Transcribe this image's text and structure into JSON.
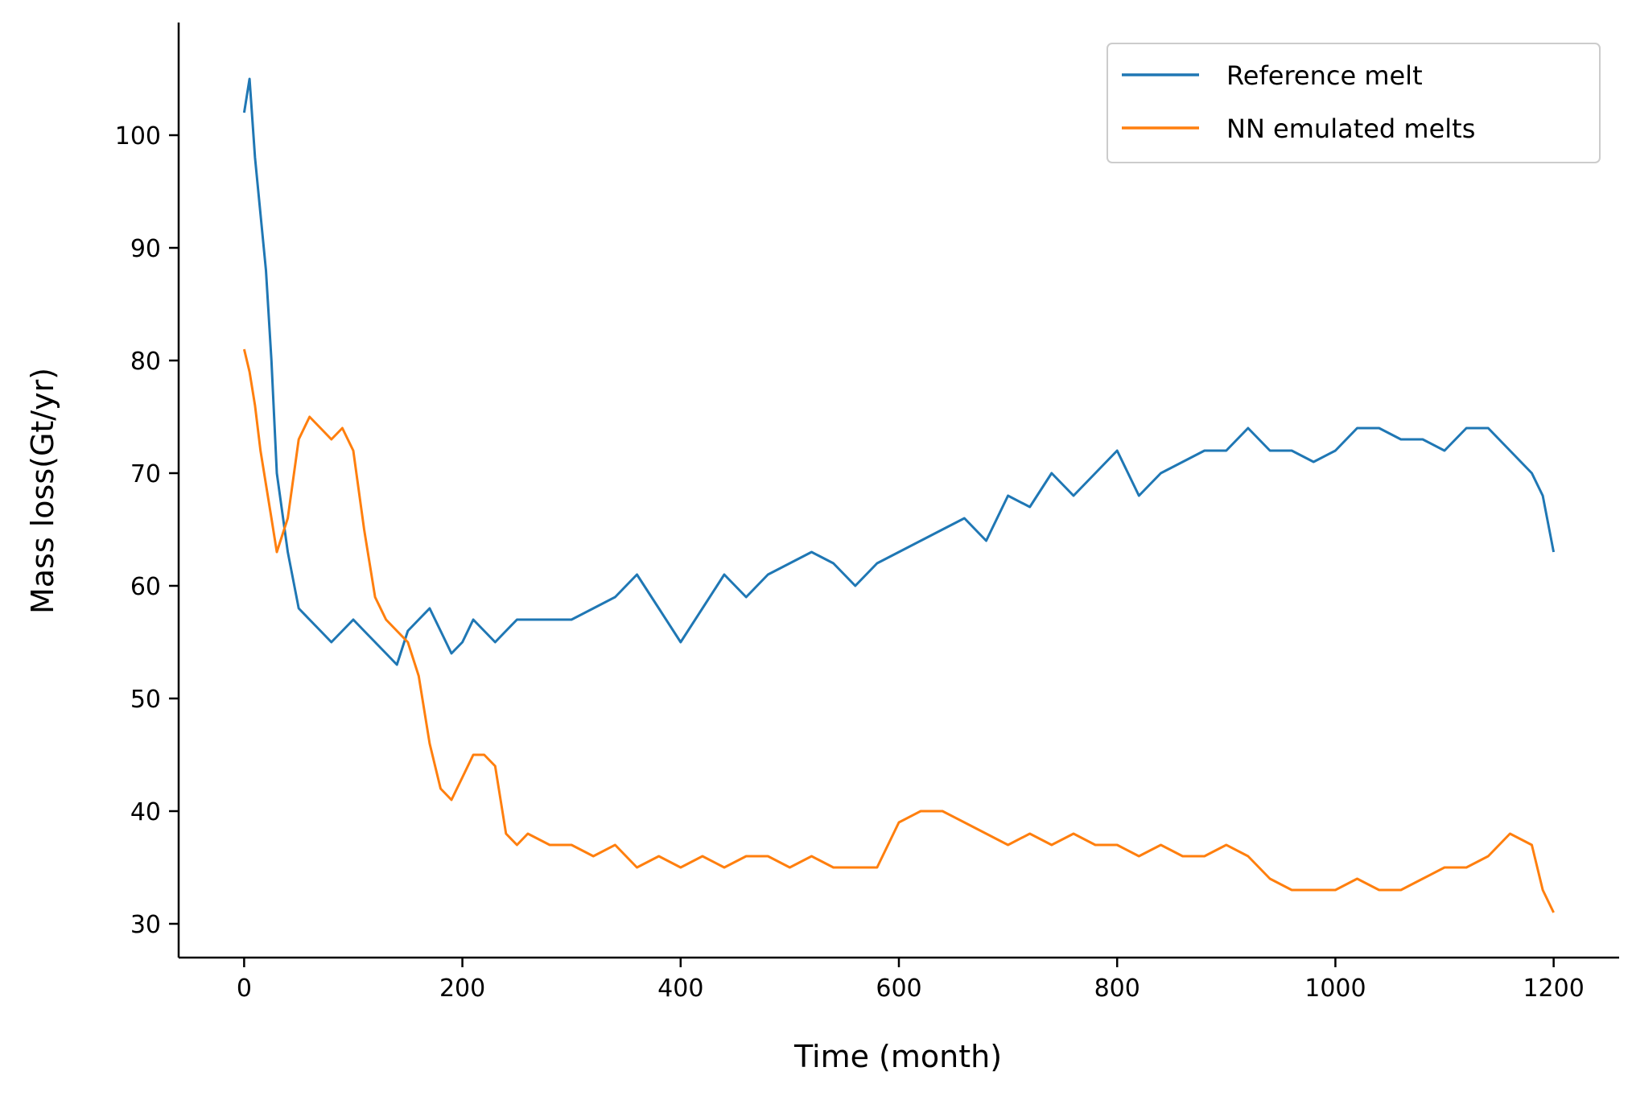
{
  "chart_data": {
    "type": "line",
    "title": "",
    "xlabel": "Time (month)",
    "ylabel": "Mass loss(Gt/yr)",
    "xlim": [
      -60,
      1260
    ],
    "ylim": [
      27,
      110
    ],
    "xticks": [
      0,
      200,
      400,
      600,
      800,
      1000,
      1200
    ],
    "yticks": [
      30,
      40,
      50,
      60,
      70,
      80,
      90,
      100
    ],
    "grid": false,
    "legend_position": "top-right",
    "x": [
      0,
      5,
      10,
      15,
      20,
      25,
      30,
      40,
      50,
      60,
      70,
      80,
      90,
      100,
      110,
      120,
      130,
      140,
      150,
      160,
      170,
      180,
      190,
      200,
      210,
      220,
      230,
      240,
      250,
      260,
      280,
      300,
      320,
      340,
      360,
      380,
      400,
      420,
      440,
      460,
      480,
      500,
      520,
      540,
      560,
      580,
      600,
      620,
      640,
      660,
      680,
      700,
      720,
      740,
      760,
      780,
      800,
      820,
      840,
      860,
      880,
      900,
      920,
      940,
      960,
      980,
      1000,
      1020,
      1040,
      1060,
      1080,
      1100,
      1120,
      1140,
      1160,
      1180,
      1190,
      1200
    ],
    "series": [
      {
        "name": "Reference melt",
        "color": "#1f77b4",
        "values": [
          102,
          105,
          98,
          93,
          88,
          80,
          70,
          63,
          58,
          57,
          56,
          55,
          56,
          57,
          56,
          55,
          54,
          53,
          56,
          57,
          58,
          56,
          54,
          55,
          57,
          56,
          55,
          56,
          57,
          57,
          57,
          57,
          58,
          59,
          61,
          58,
          55,
          58,
          61,
          59,
          61,
          62,
          63,
          62,
          60,
          62,
          63,
          64,
          65,
          66,
          64,
          68,
          67,
          70,
          68,
          70,
          72,
          68,
          70,
          71,
          72,
          72,
          74,
          72,
          72,
          71,
          72,
          74,
          74,
          73,
          73,
          72,
          74,
          74,
          72,
          70,
          68,
          63
        ]
      },
      {
        "name": "NN emulated melts",
        "color": "#ff7f0e",
        "values": [
          81,
          79,
          76,
          72,
          69,
          66,
          63,
          66,
          73,
          75,
          74,
          73,
          74,
          72,
          65,
          59,
          57,
          56,
          55,
          52,
          46,
          42,
          41,
          43,
          45,
          45,
          44,
          38,
          37,
          38,
          37,
          37,
          36,
          37,
          35,
          36,
          35,
          36,
          35,
          36,
          36,
          35,
          36,
          35,
          35,
          35,
          39,
          40,
          40,
          39,
          38,
          37,
          38,
          37,
          38,
          37,
          37,
          36,
          37,
          36,
          36,
          37,
          36,
          34,
          33,
          33,
          33,
          34,
          33,
          33,
          34,
          35,
          35,
          36,
          38,
          37,
          33,
          31
        ]
      }
    ]
  }
}
